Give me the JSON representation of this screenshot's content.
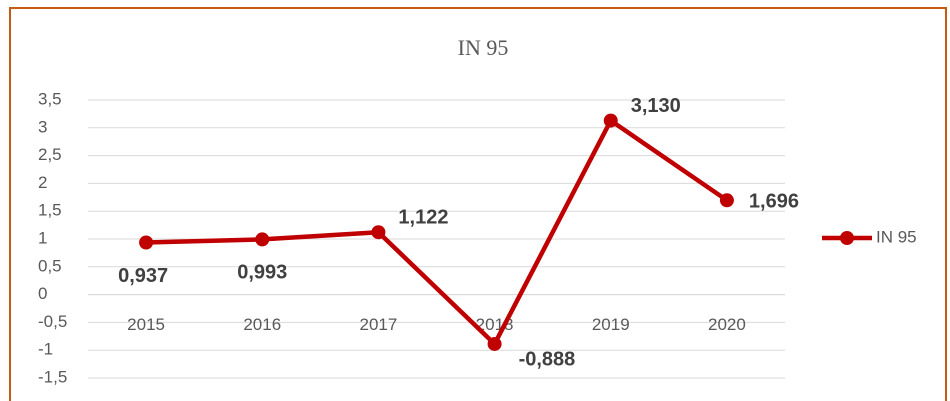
{
  "chart_data": {
    "type": "line",
    "title": "IN 95",
    "categories": [
      "2015",
      "2016",
      "2017",
      "2018",
      "2019",
      "2020"
    ],
    "series": [
      {
        "name": "IN 95",
        "color": "#c00000",
        "values": [
          0.937,
          0.993,
          1.122,
          -0.888,
          3.13,
          1.696
        ],
        "value_labels": [
          "0,937",
          "0,993",
          "1,122",
          "-0,888",
          "3,130",
          "1,696"
        ]
      }
    ],
    "ylim": [
      -1.5,
      3.5
    ],
    "yticks": [
      {
        "value": -1.5,
        "label": "-1,5"
      },
      -1,
      {
        "value": -0.5,
        "label": "-0,5"
      },
      0,
      {
        "value": 0.5,
        "label": "0,5"
      },
      1,
      {
        "value": 1.5,
        "label": "1,5"
      },
      2,
      {
        "value": 2.5,
        "label": "2,5"
      },
      3,
      {
        "value": 3.5,
        "label": "3,5"
      }
    ],
    "grid": true,
    "legend": "right"
  }
}
